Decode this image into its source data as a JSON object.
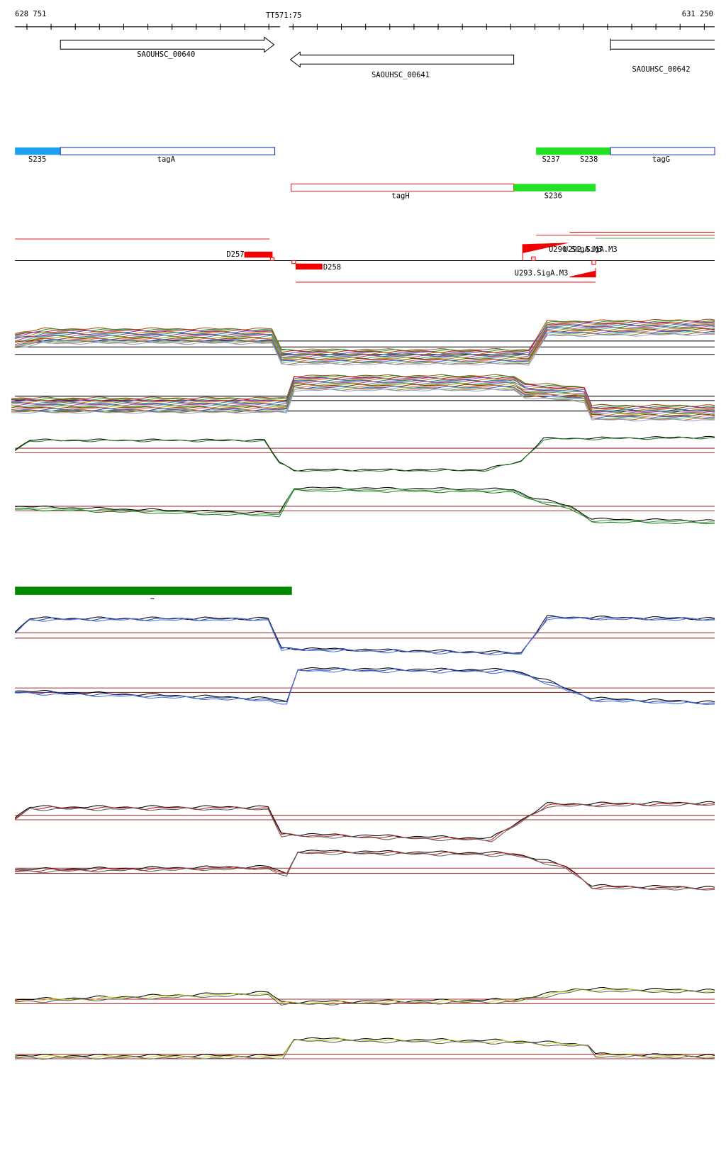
{
  "ruler": {
    "start": "628 751",
    "center": "TT571:75",
    "end": "631 250"
  },
  "genes": [
    {
      "label": "SAOUHSC_00640"
    },
    {
      "label": "SAOUHSC_00641"
    },
    {
      "label": "SAOUHSC_00642"
    }
  ],
  "segments": {
    "top": [
      "S235",
      "tagA",
      "S237",
      "S238",
      "tagG"
    ],
    "bottom": [
      "tagH",
      "S236"
    ]
  },
  "features": [
    "D257",
    "D258",
    "U290.SigA.M3",
    "U292.SigA.M3",
    "U293.SigA.M3"
  ]
}
